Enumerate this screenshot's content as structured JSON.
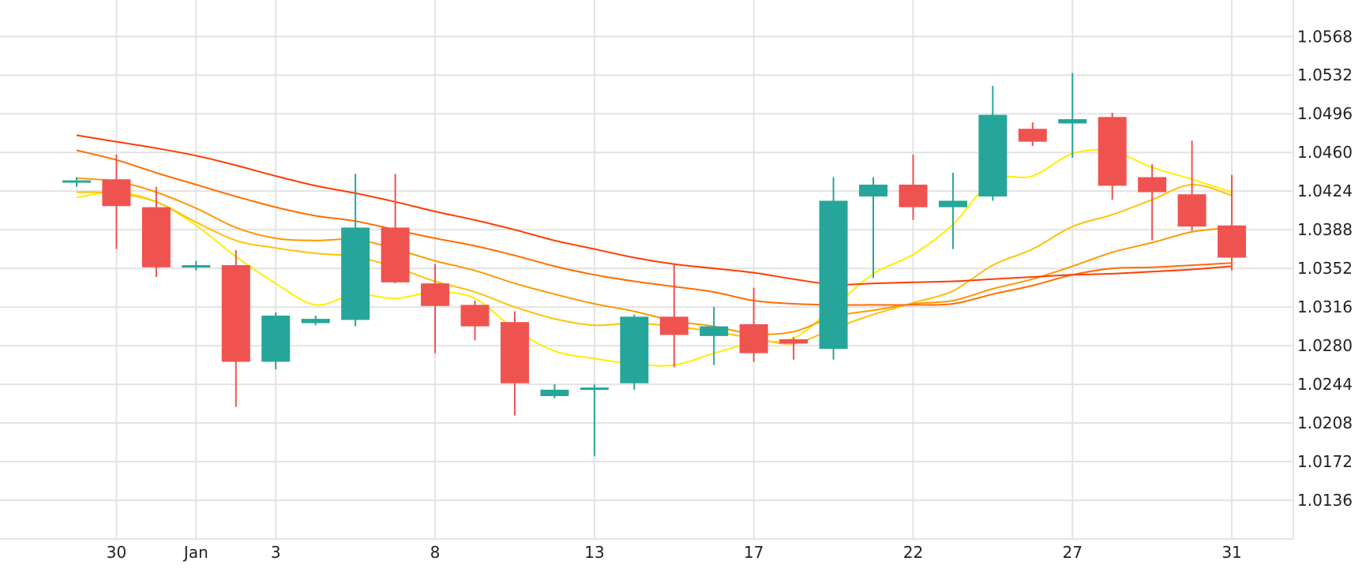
{
  "chart_data": {
    "type": "candlestick",
    "title": "",
    "xlabel": "",
    "ylabel": "",
    "ylim": [
      1.01,
      1.0602
    ],
    "y_ticks": [
      "1.0568",
      "1.0532",
      "1.0496",
      "1.0460",
      "1.0424",
      "1.0388",
      "1.0352",
      "1.0316",
      "1.0280",
      "1.0244",
      "1.0208",
      "1.0172",
      "1.0136"
    ],
    "x_ticks": [
      {
        "index": 1,
        "label": "30"
      },
      {
        "index": 3,
        "label": "Jan"
      },
      {
        "index": 5,
        "label": "3"
      },
      {
        "index": 9,
        "label": "8"
      },
      {
        "index": 13,
        "label": "13"
      },
      {
        "index": 17,
        "label": "17"
      },
      {
        "index": 21,
        "label": "22"
      },
      {
        "index": 25,
        "label": "27"
      },
      {
        "index": 29,
        "label": "31"
      }
    ],
    "grid": true,
    "colors": {
      "up": "#26a69a",
      "down": "#ef5350",
      "ma_1": "#ffee00",
      "ma_2": "#ffc107",
      "ma_3": "#ff9800",
      "ma_4": "#ff6d00",
      "ma_5": "#ff3d00"
    },
    "candles": [
      {
        "o": 1.0433,
        "h": 1.0437,
        "l": 1.0428,
        "c": 1.0434
      },
      {
        "o": 1.0435,
        "h": 1.0458,
        "l": 1.037,
        "c": 1.041
      },
      {
        "o": 1.0409,
        "h": 1.0428,
        "l": 1.0344,
        "c": 1.0353
      },
      {
        "o": 1.0354,
        "h": 1.0359,
        "l": 1.035,
        "c": 1.0355
      },
      {
        "o": 1.0355,
        "h": 1.0369,
        "l": 1.0223,
        "c": 1.0265
      },
      {
        "o": 1.0265,
        "h": 1.0311,
        "l": 1.0258,
        "c": 1.0308
      },
      {
        "o": 1.0301,
        "h": 1.0308,
        "l": 1.0299,
        "c": 1.0305
      },
      {
        "o": 1.0304,
        "h": 1.044,
        "l": 1.0298,
        "c": 1.039
      },
      {
        "o": 1.039,
        "h": 1.044,
        "l": 1.0338,
        "c": 1.0339
      },
      {
        "o": 1.0338,
        "h": 1.0356,
        "l": 1.0273,
        "c": 1.0317
      },
      {
        "o": 1.0318,
        "h": 1.0322,
        "l": 1.0285,
        "c": 1.0298
      },
      {
        "o": 1.0302,
        "h": 1.0312,
        "l": 1.0215,
        "c": 1.0245
      },
      {
        "o": 1.0233,
        "h": 1.0244,
        "l": 1.0231,
        "c": 1.0239
      },
      {
        "o": 1.0239,
        "h": 1.0244,
        "l": 1.0177,
        "c": 1.0241
      },
      {
        "o": 1.0245,
        "h": 1.0309,
        "l": 1.0239,
        "c": 1.0307
      },
      {
        "o": 1.0307,
        "h": 1.0355,
        "l": 1.026,
        "c": 1.029
      },
      {
        "o": 1.0289,
        "h": 1.0316,
        "l": 1.0262,
        "c": 1.0298
      },
      {
        "o": 1.03,
        "h": 1.0334,
        "l": 1.0265,
        "c": 1.0273
      },
      {
        "o": 1.0286,
        "h": 1.0288,
        "l": 1.0267,
        "c": 1.0282
      },
      {
        "o": 1.0277,
        "h": 1.0437,
        "l": 1.0267,
        "c": 1.0415
      },
      {
        "o": 1.0419,
        "h": 1.0437,
        "l": 1.0343,
        "c": 1.043
      },
      {
        "o": 1.043,
        "h": 1.0458,
        "l": 1.0397,
        "c": 1.0409
      },
      {
        "o": 1.0409,
        "h": 1.0441,
        "l": 1.037,
        "c": 1.0415
      },
      {
        "o": 1.0419,
        "h": 1.0522,
        "l": 1.0415,
        "c": 1.0495
      },
      {
        "o": 1.0482,
        "h": 1.0488,
        "l": 1.0466,
        "c": 1.047
      },
      {
        "o": 1.0487,
        "h": 1.0534,
        "l": 1.0455,
        "c": 1.0491
      },
      {
        "o": 1.0493,
        "h": 1.0497,
        "l": 1.0416,
        "c": 1.0429
      },
      {
        "o": 1.0437,
        "h": 1.0449,
        "l": 1.0378,
        "c": 1.0423
      },
      {
        "o": 1.0421,
        "h": 1.0471,
        "l": 1.0387,
        "c": 1.0391
      },
      {
        "o": 1.0392,
        "h": 1.0439,
        "l": 1.035,
        "c": 1.0362
      }
    ],
    "series": [
      {
        "values": [
          1.0418,
          1.0423,
          1.0414,
          1.0392,
          1.0363,
          1.0338,
          1.0318,
          1.0328,
          1.0324,
          1.033,
          1.0324,
          1.0295,
          1.0275,
          1.0268,
          1.0263,
          1.0262,
          1.0273,
          1.0283,
          1.0287,
          1.0316,
          1.0347,
          1.0365,
          1.0393,
          1.0434,
          1.0438,
          1.0459,
          1.0461,
          1.0446,
          1.0435,
          1.0423
        ]
      },
      {
        "values": [
          1.0423,
          1.0422,
          1.0414,
          1.0395,
          1.0378,
          1.0371,
          1.0366,
          1.0363,
          1.0353,
          1.034,
          1.033,
          1.0316,
          1.0305,
          1.0299,
          1.0301,
          1.0298,
          1.0293,
          1.0287,
          1.0282,
          1.0296,
          1.0309,
          1.032,
          1.0331,
          1.0355,
          1.037,
          1.0391,
          1.0402,
          1.0416,
          1.043,
          1.042
        ]
      },
      {
        "values": [
          1.0436,
          1.0433,
          1.0423,
          1.0408,
          1.039,
          1.038,
          1.0378,
          1.0379,
          1.037,
          1.0359,
          1.035,
          1.0338,
          1.0328,
          1.0319,
          1.0312,
          1.0303,
          1.0298,
          1.0291,
          1.0293,
          1.0307,
          1.0313,
          1.0319,
          1.0322,
          1.0333,
          1.0342,
          1.0354,
          1.0367,
          1.0376,
          1.0386,
          1.039
        ]
      },
      {
        "values": [
          1.0462,
          1.0453,
          1.0441,
          1.043,
          1.0419,
          1.0409,
          1.0401,
          1.0396,
          1.0388,
          1.038,
          1.0373,
          1.0364,
          1.0354,
          1.0346,
          1.034,
          1.0335,
          1.033,
          1.0322,
          1.0319,
          1.0318,
          1.0318,
          1.0318,
          1.0319,
          1.0328,
          1.0336,
          1.0346,
          1.0352,
          1.0353,
          1.0355,
          1.0357
        ]
      },
      {
        "values": [
          1.0476,
          1.047,
          1.0464,
          1.0457,
          1.0448,
          1.0438,
          1.0429,
          1.0422,
          1.0414,
          1.0405,
          1.0397,
          1.0388,
          1.0378,
          1.037,
          1.0362,
          1.0356,
          1.0352,
          1.0348,
          1.0342,
          1.0337,
          1.0338,
          1.0339,
          1.034,
          1.0342,
          1.0344,
          1.0346,
          1.0347,
          1.0349,
          1.0351,
          1.0354
        ]
      }
    ]
  }
}
